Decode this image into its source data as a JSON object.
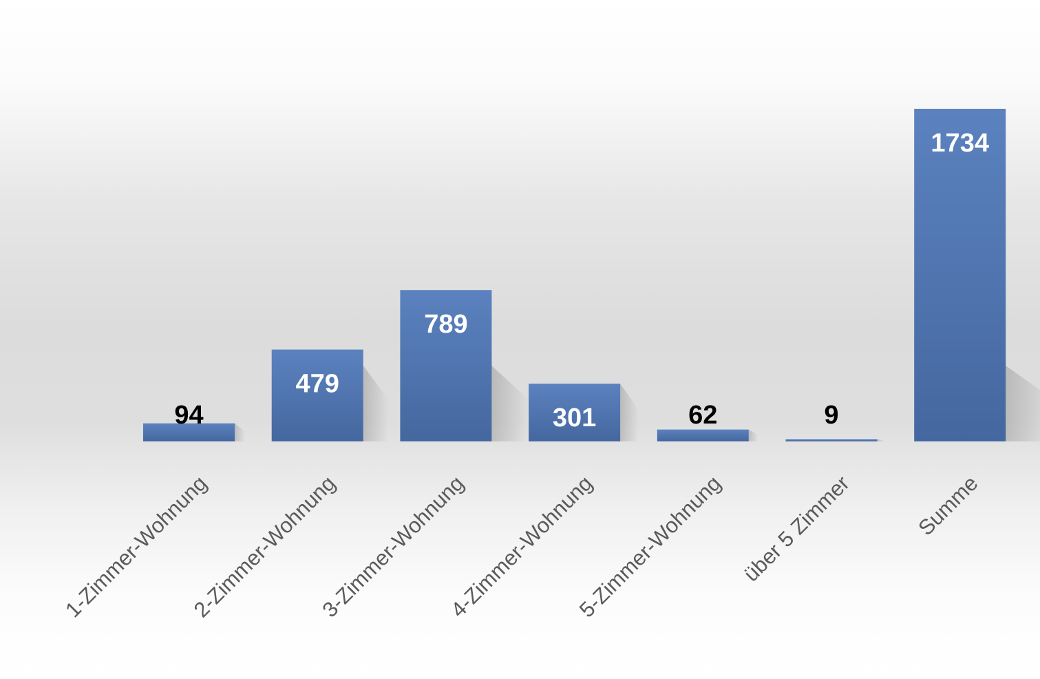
{
  "chart_data": {
    "type": "bar",
    "title": "",
    "xlabel": "",
    "ylabel": "",
    "categories": [
      "1-Zimmer-Wohnung",
      "2-Zimmer-Wohnung",
      "3-Zimmer-Wohnung",
      "4-Zimmer-Wohnung",
      "5-Zimmer-Wohnung",
      "über 5 Zimmer",
      "Summe"
    ],
    "values": [
      94,
      479,
      789,
      301,
      62,
      9,
      1734
    ],
    "data_labels": [
      "94",
      "479",
      "789",
      "301",
      "62",
      "9",
      "1734"
    ],
    "ylim": [
      0,
      1734
    ],
    "grid": false,
    "legend": "none",
    "colors": {
      "bar_top": "#5b82bf",
      "bar_bottom": "#45679f",
      "label_inside": "#ffffff",
      "label_outside": "#000000",
      "category_text": "#5a5a5a"
    }
  }
}
